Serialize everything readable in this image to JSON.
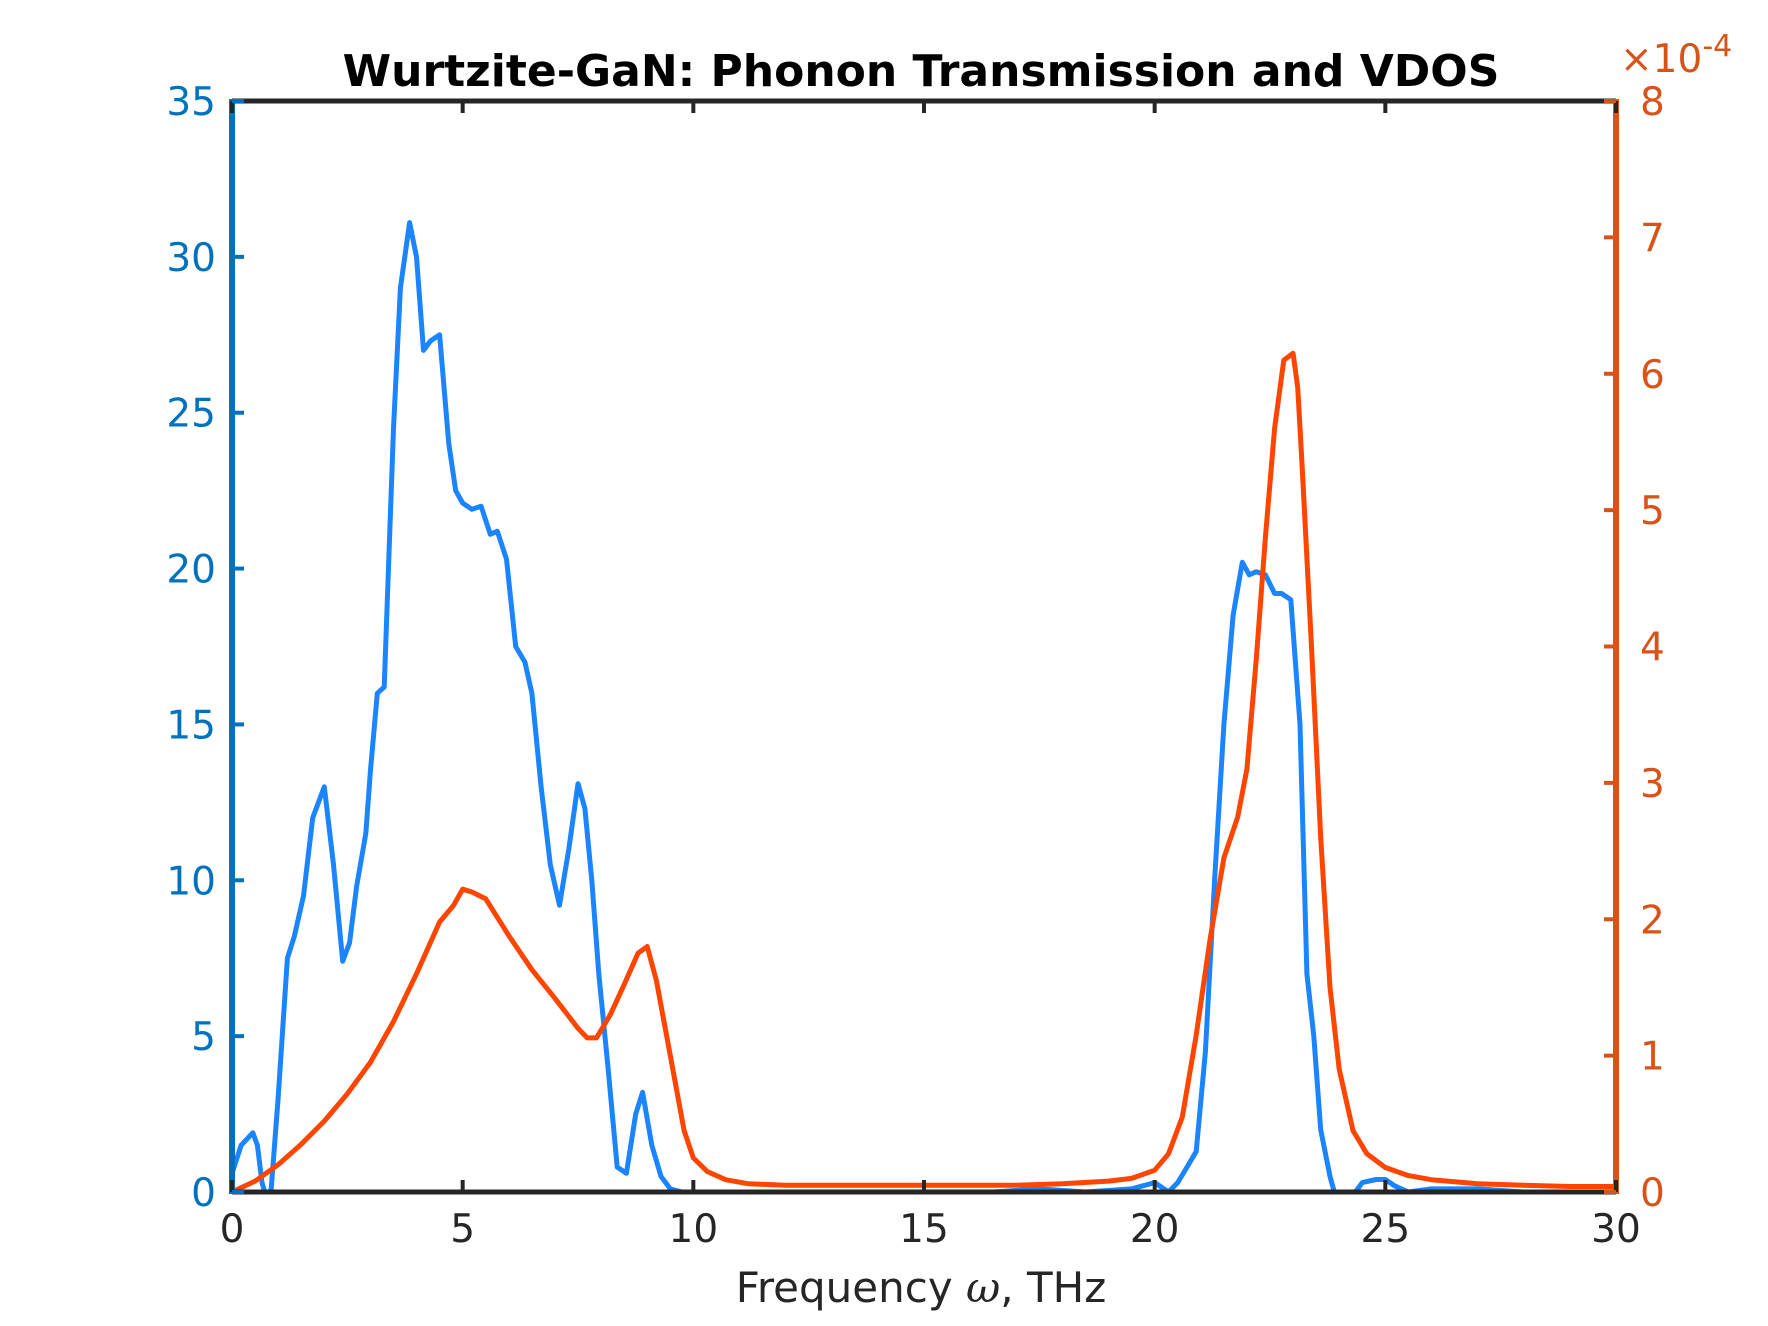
{
  "chart_data": {
    "type": "line",
    "title": "Wurtzite-GaN: Phonon Transmission and VDOS",
    "xlabel": "Frequency ω, THz",
    "ylabel_left": "",
    "ylabel_right": "",
    "xlim": [
      0,
      30
    ],
    "ylim_left": [
      0,
      35
    ],
    "ylim_right": [
      0,
      8
    ],
    "right_axis_multiplier": "×10-4",
    "x_ticks": [
      "0",
      "5",
      "10",
      "15",
      "20",
      "25",
      "30"
    ],
    "y_left_ticks": [
      "0",
      "5",
      "10",
      "15",
      "20",
      "25",
      "30",
      "35"
    ],
    "y_right_ticks": [
      "0",
      "1",
      "2",
      "3",
      "4",
      "5",
      "6",
      "7",
      "8"
    ],
    "grid": false,
    "legend": "none",
    "colors": {
      "left_axis": "#0072BD",
      "right_axis": "#D95319",
      "transmission_line": "#1A85FF",
      "vdos_line": "#FF4500",
      "box": "#262626"
    },
    "series": [
      {
        "axis": "left",
        "x": [
          0,
          0.2,
          0.45,
          0.55,
          0.65,
          0.75,
          0.85,
          1.0,
          1.2,
          1.35,
          1.55,
          1.75,
          2.0,
          2.2,
          2.4,
          2.55,
          2.7,
          2.9,
          3.0,
          3.15,
          3.3,
          3.5,
          3.65,
          3.85,
          4.0,
          4.15,
          4.3,
          4.5,
          4.7,
          4.85,
          5.0,
          5.2,
          5.4,
          5.6,
          5.75,
          5.95,
          6.15,
          6.35,
          6.5,
          6.7,
          6.9,
          7.1,
          7.3,
          7.5,
          7.65,
          7.8,
          7.95,
          8.15,
          8.35,
          8.55,
          8.75,
          8.9,
          9.1,
          9.3,
          9.5,
          9.75,
          10.0,
          10.5,
          11.5,
          12.5,
          13.5,
          14.5,
          15.5,
          16.5,
          17.5,
          18.5,
          19.5,
          20.0,
          20.3,
          20.5,
          20.7,
          20.9,
          21.1,
          21.3,
          21.5,
          21.7,
          21.9,
          22.05,
          22.2,
          22.4,
          22.6,
          22.75,
          22.95,
          23.15,
          23.3,
          23.45,
          23.6,
          23.8,
          23.95,
          24.1,
          24.3,
          24.5,
          24.8,
          25.0,
          25.2,
          25.5,
          26.0,
          27.0,
          28.0,
          29.0,
          30.0
        ],
        "y": [
          0.6,
          1.5,
          1.9,
          1.5,
          0.3,
          -0.2,
          0.1,
          3.0,
          7.5,
          8.2,
          9.5,
          12.0,
          13.0,
          10.5,
          7.4,
          8.0,
          9.8,
          11.5,
          13.5,
          16.0,
          16.2,
          24.5,
          29.0,
          31.1,
          30.0,
          27.0,
          27.3,
          27.5,
          24.0,
          22.5,
          22.1,
          21.9,
          22.0,
          21.1,
          21.2,
          20.3,
          17.5,
          17.0,
          16.0,
          13.0,
          10.5,
          9.2,
          11.0,
          13.1,
          12.3,
          10.0,
          7.0,
          4.0,
          0.8,
          0.6,
          2.5,
          3.2,
          1.5,
          0.5,
          0.1,
          0.0,
          -0.2,
          -0.2,
          -0.1,
          -0.1,
          -0.1,
          -0.1,
          -0.1,
          0.0,
          0.1,
          0.0,
          0.1,
          0.3,
          0.0,
          0.3,
          0.8,
          1.3,
          4.5,
          10.0,
          15.0,
          18.5,
          20.2,
          19.8,
          19.9,
          19.8,
          19.2,
          19.2,
          19.0,
          15.0,
          7.0,
          5.0,
          2.0,
          0.5,
          -0.3,
          -0.3,
          -0.1,
          0.3,
          0.4,
          0.4,
          0.2,
          0.0,
          0.1,
          0.1,
          0.0,
          0.0,
          0.0
        ]
      },
      {
        "axis": "right",
        "x": [
          0,
          0.5,
          1.0,
          1.5,
          2.0,
          2.5,
          3.0,
          3.5,
          4.0,
          4.5,
          4.8,
          5.0,
          5.2,
          5.5,
          6.0,
          6.5,
          7.0,
          7.5,
          7.7,
          7.9,
          8.2,
          8.5,
          8.8,
          9.0,
          9.2,
          9.5,
          9.8,
          10.0,
          10.3,
          10.7,
          11.2,
          12.0,
          13.0,
          14.0,
          15.0,
          16.0,
          17.0,
          18.0,
          19.0,
          19.5,
          20.0,
          20.3,
          20.6,
          20.9,
          21.2,
          21.5,
          21.8,
          22.0,
          22.2,
          22.4,
          22.6,
          22.8,
          23.0,
          23.1,
          23.2,
          23.4,
          23.6,
          23.8,
          24.0,
          24.3,
          24.6,
          25.0,
          25.5,
          26.0,
          27.0,
          28.0,
          29.0,
          30.0
        ],
        "y": [
          0.0,
          0.08,
          0.2,
          0.35,
          0.52,
          0.72,
          0.95,
          1.25,
          1.6,
          1.98,
          2.1,
          2.22,
          2.2,
          2.15,
          1.88,
          1.63,
          1.42,
          1.2,
          1.13,
          1.13,
          1.3,
          1.52,
          1.75,
          1.8,
          1.55,
          1.0,
          0.45,
          0.25,
          0.15,
          0.09,
          0.06,
          0.05,
          0.05,
          0.05,
          0.05,
          0.05,
          0.05,
          0.06,
          0.08,
          0.1,
          0.16,
          0.28,
          0.55,
          1.15,
          1.85,
          2.45,
          2.75,
          3.1,
          3.9,
          4.8,
          5.6,
          6.1,
          6.15,
          5.9,
          5.3,
          4.0,
          2.6,
          1.5,
          0.9,
          0.45,
          0.28,
          0.18,
          0.12,
          0.09,
          0.06,
          0.05,
          0.04,
          0.04
        ]
      }
    ]
  }
}
